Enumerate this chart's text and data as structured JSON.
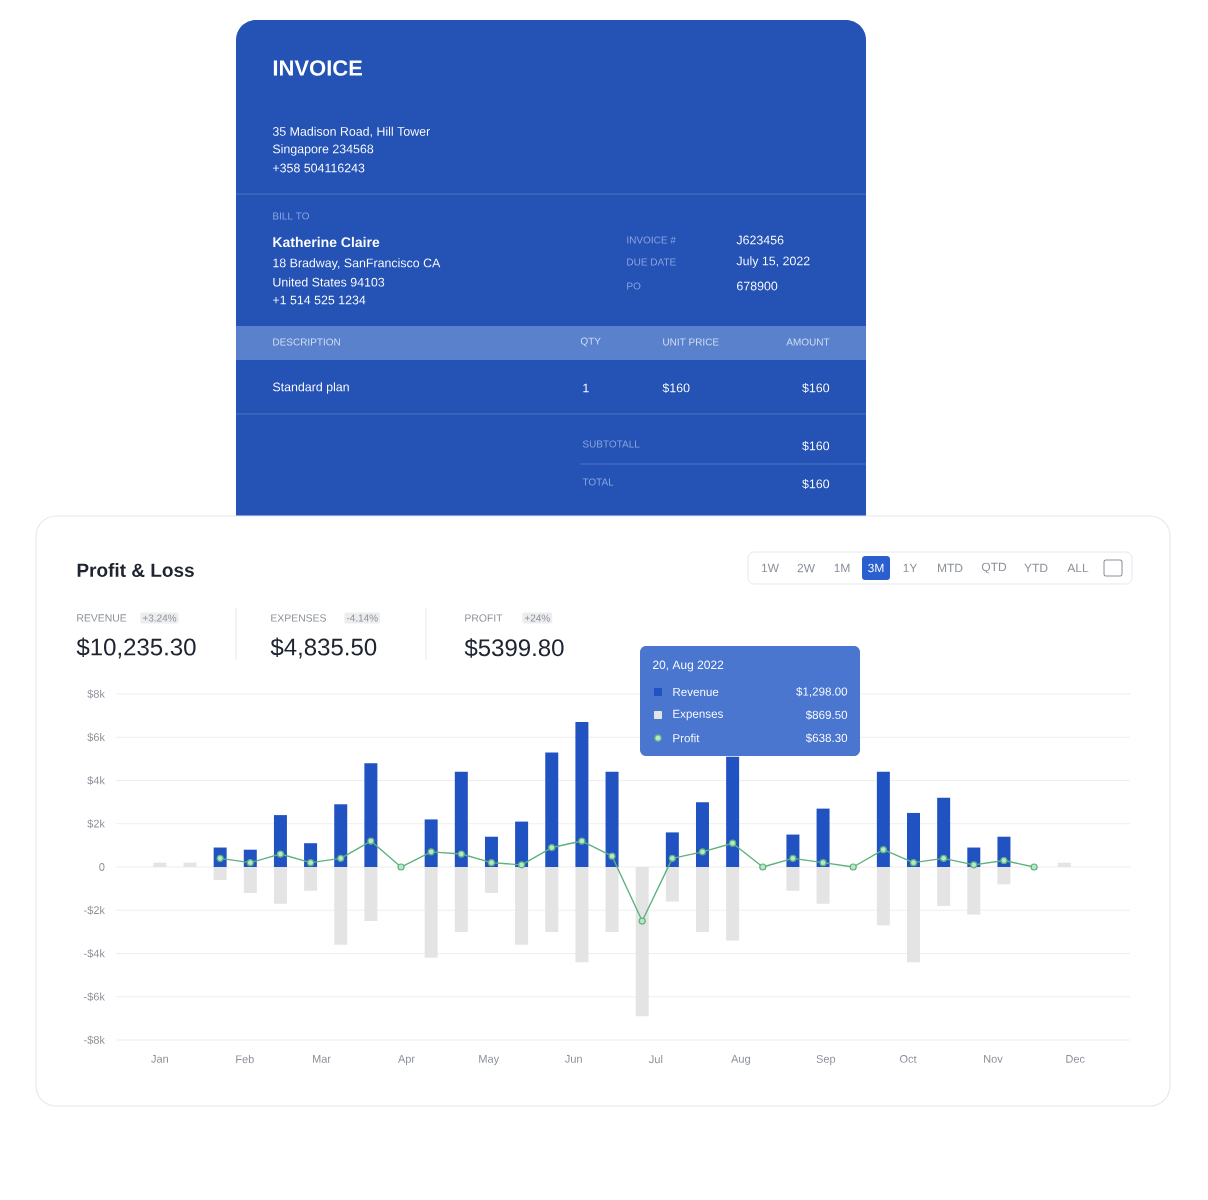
{
  "chart_data": [
    {
      "type": "other",
      "title": "INVOICE",
      "annotations": [
        "35 Madison Road, Hill Tower",
        "Singapore 234568",
        "+358 504116243",
        "BILL TO",
        "Katherine Claire",
        "18 Bradway, SanFrancisco CA",
        "United States 94103",
        "+1 514 525 1234",
        "INVOICE #",
        "J623456",
        "DUE DATE",
        "July 15, 2022",
        "PO",
        "678900",
        "DESCRIPTION",
        "QTY",
        "UNIT PRICE",
        "AMOUNT",
        "Standard plan",
        "1",
        "$160",
        "$160",
        "SUBTOTALL",
        "$160",
        "TOTAL",
        "$160"
      ]
    },
    {
      "type": "bar",
      "title": "Profit & Loss",
      "stacked": true,
      "annotations": [
        "1W",
        "2W",
        "1M",
        "3M",
        "1Y",
        "MTD",
        "QTD",
        "YTD",
        "ALL",
        "REVENUE",
        "+3.24%",
        "$10,235.30",
        "EXPENSES",
        "-4.14%",
        "$4,835.50",
        "PROFIT",
        "+24%",
        "$5399.80",
        "20, Aug 2022",
        "$1,298.00",
        "$869.50",
        "$638.30"
      ],
      "x": [
        "2022-01-15",
        "2022-01-26",
        "2022-02-06",
        "2022-02-17",
        "2022-02-28",
        "2022-03-11",
        "2022-03-22",
        "2022-04-02",
        "2022-04-13",
        "2022-04-24",
        "2022-05-05",
        "2022-05-16",
        "2022-05-27",
        "2022-06-07",
        "2022-06-18",
        "2022-06-29",
        "2022-07-10",
        "2022-07-21",
        "2022-08-01",
        "2022-08-12",
        "2022-08-23",
        "2022-09-03",
        "2022-09-14",
        "2022-09-25",
        "2022-10-06",
        "2022-10-17",
        "2022-10-28",
        "2022-11-08",
        "2022-11-19",
        "2022-11-30",
        "2022-12-11"
      ],
      "series": [
        {
          "name": "Revenue",
          "type": "bar",
          "color": "#2152c1",
          "values": [
            null,
            null,
            0.9,
            0.8,
            2.4,
            1.1,
            2.9,
            4.8,
            null,
            2.2,
            4.4,
            1.4,
            2.1,
            5.3,
            6.7,
            4.4,
            null,
            1.6,
            3.0,
            5.1,
            null,
            1.5,
            2.7,
            null,
            4.4,
            2.5,
            3.2,
            0.9,
            1.4,
            null,
            null
          ]
        },
        {
          "name": "Expenses",
          "type": "bar",
          "color": "#e4e4e4",
          "values": [
            0.2,
            0.2,
            -0.6,
            -1.2,
            -1.7,
            -1.1,
            -3.6,
            -2.5,
            null,
            -4.2,
            -3.0,
            -1.2,
            -3.6,
            -3.0,
            -4.4,
            -3.0,
            -6.9,
            -1.6,
            -3.0,
            -3.4,
            null,
            -1.1,
            -1.7,
            null,
            -2.7,
            -4.4,
            -1.8,
            -2.2,
            -0.8,
            null,
            0.2
          ]
        },
        {
          "name": "Profit",
          "type": "line",
          "color": "#5db27e",
          "marker": "circle",
          "values": [
            null,
            null,
            0.4,
            0.2,
            0.6,
            0.2,
            0.4,
            1.2,
            0,
            0.7,
            0.6,
            0.2,
            0.1,
            0.9,
            1.2,
            0.5,
            -2.5,
            0.4,
            0.7,
            1.1,
            0,
            0.4,
            0.2,
            0,
            0.8,
            0.2,
            0.4,
            0.1,
            0.3,
            0,
            null
          ]
        }
      ],
      "xlim": [
        "2021-12-30",
        "2023-01-04"
      ],
      "ylim": [
        -8,
        8
      ],
      "xticks": [
        {
          "value": "2022-01-15",
          "label": "Jan"
        },
        {
          "value": "2022-02-15",
          "label": "Feb"
        },
        {
          "value": "2022-03-15",
          "label": "Mar"
        },
        {
          "value": "2022-04-15",
          "label": "Apr"
        },
        {
          "value": "2022-05-15",
          "label": "May"
        },
        {
          "value": "2022-06-15",
          "label": "Jun"
        },
        {
          "value": "2022-07-15",
          "label": "Jul"
        },
        {
          "value": "2022-08-15",
          "label": "Aug"
        },
        {
          "value": "2022-09-15",
          "label": "Sep"
        },
        {
          "value": "2022-10-15",
          "label": "Oct"
        },
        {
          "value": "2022-11-15",
          "label": "Nov"
        },
        {
          "value": "2022-12-15",
          "label": "Dec"
        }
      ],
      "yticks": [
        {
          "value": -8,
          "label": "-$8k"
        },
        {
          "value": -6,
          "label": "-$6k"
        },
        {
          "value": -4,
          "label": "-$4k"
        },
        {
          "value": -2,
          "label": "-$2k"
        },
        0,
        {
          "value": 2,
          "label": "$2k"
        },
        {
          "value": 4,
          "label": "$4k"
        },
        {
          "value": 6,
          "label": "$6k"
        },
        {
          "value": 8,
          "label": "$8k"
        }
      ],
      "grid": "y",
      "legend": "top"
    }
  ]
}
